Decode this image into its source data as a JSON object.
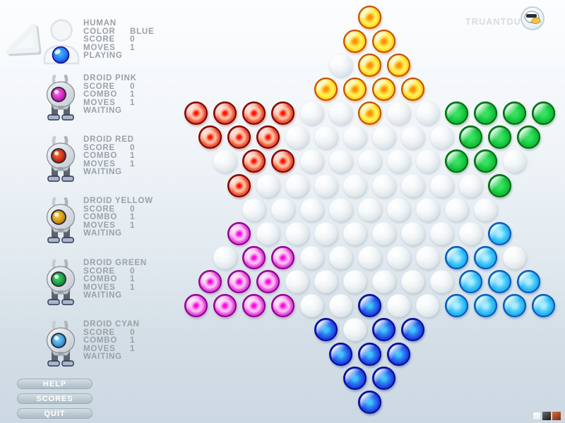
{
  "brand": {
    "name": "TRUANTDUCK"
  },
  "players": [
    {
      "id": "human",
      "name": "HUMAN",
      "status": "PLAYING",
      "color": "#1e46e2",
      "eye_light": "#48c4ff",
      "eye_dark": "#0a20b0",
      "stats": [
        {
          "label": "COLOR",
          "value": "BLUE"
        },
        {
          "label": "SCORE",
          "value": "0"
        },
        {
          "label": "MOVES",
          "value": "1"
        }
      ]
    },
    {
      "id": "droid-pink",
      "name": "DROID PINK",
      "status": "WAITING",
      "color": "#cc16c2",
      "eye_light": "#ff70ea",
      "eye_dark": "#b400a8",
      "stats": [
        {
          "label": "SCORE",
          "value": "0"
        },
        {
          "label": "COMBO",
          "value": "1"
        },
        {
          "label": "MOVES",
          "value": "1"
        }
      ]
    },
    {
      "id": "droid-red",
      "name": "DROID RED",
      "status": "WAITING",
      "color": "#d02c16",
      "eye_light": "#ff7040",
      "eye_dark": "#a81000",
      "stats": [
        {
          "label": "SCORE",
          "value": "0"
        },
        {
          "label": "COMBO",
          "value": "1"
        },
        {
          "label": "MOVES",
          "value": "1"
        }
      ]
    },
    {
      "id": "droid-yellow",
      "name": "DROID YELLOW",
      "status": "WAITING",
      "color": "#ffaa00",
      "eye_light": "#ffd23c",
      "eye_dark": "#b87400",
      "stats": [
        {
          "label": "SCORE",
          "value": "0"
        },
        {
          "label": "COMBO",
          "value": "1"
        },
        {
          "label": "MOVES",
          "value": "1"
        }
      ]
    },
    {
      "id": "droid-green",
      "name": "DROID GREEN",
      "status": "WAITING",
      "color": "#12b434",
      "eye_light": "#40e070",
      "eye_dark": "#087828",
      "stats": [
        {
          "label": "SCORE",
          "value": "0"
        },
        {
          "label": "COMBO",
          "value": "1"
        },
        {
          "label": "MOVES",
          "value": "1"
        }
      ]
    },
    {
      "id": "droid-cyan",
      "name": "DROID CYAN",
      "status": "WAITING",
      "color": "#1ca6ec",
      "eye_light": "#8cd8ff",
      "eye_dark": "#1878c4",
      "stats": [
        {
          "label": "SCORE",
          "value": "0"
        },
        {
          "label": "COMBO",
          "value": "1"
        },
        {
          "label": "MOVES",
          "value": "1"
        }
      ]
    }
  ],
  "buttons": [
    {
      "id": "help",
      "label": "HELP"
    },
    {
      "id": "scores",
      "label": "SCORES"
    },
    {
      "id": "quit",
      "label": "QUIT"
    }
  ],
  "theme_swatches": [
    {
      "id": "light",
      "name": "light-theme"
    },
    {
      "id": "dark",
      "name": "dark-theme"
    },
    {
      "id": "wood",
      "name": "wood-theme"
    }
  ],
  "board": {
    "legend": {
      "Y": "yellow",
      "R": "red",
      "G": "green",
      "P": "pink",
      "C": "cyan",
      "B": "blue",
      ".": "empty"
    },
    "marble_colors": {
      "yellow": "#ffd91c",
      "red": "#d02c16",
      "green": "#12b434",
      "pink": "#cc16c2",
      "cyan": "#1ca6ec",
      "blue": "#1e46e2",
      "empty": "#e8edf0"
    },
    "rows": [
      "Y",
      "YY",
      ".YY",
      "YYYY",
      "RRRR..Y..GGGG",
      "RRR......GGG",
      ".RR.....GG.",
      "R........G",
      ".........",
      "P........C",
      ".PP.....CC.",
      "PPP......CCC",
      "PPPP..B..CCCC",
      "B.BB",
      "BBB",
      "BB",
      "B"
    ]
  }
}
